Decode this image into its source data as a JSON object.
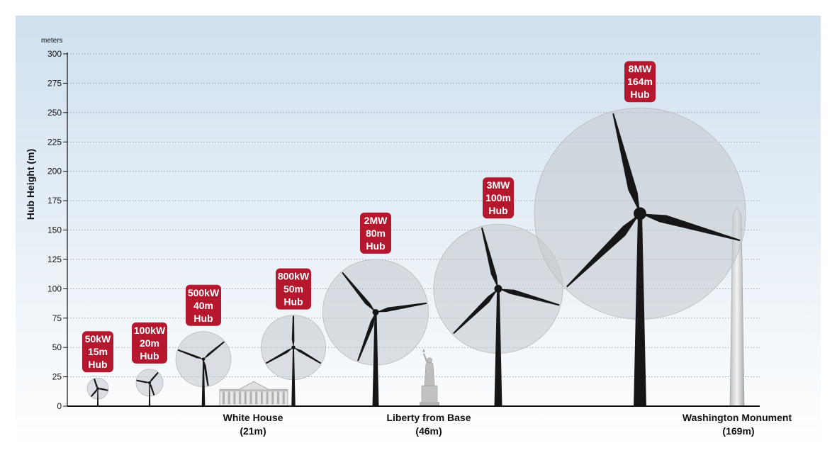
{
  "chart_data": {
    "type": "scatter",
    "unit_label": "meters",
    "ylabel": "Hub Height (m)",
    "ylim": [
      0,
      300
    ],
    "yticks": [
      0,
      25,
      50,
      75,
      100,
      125,
      150,
      175,
      200,
      225,
      250,
      275,
      300
    ],
    "grid": true,
    "accent_color": "#b5182e",
    "background_gradient": [
      "#cfe0ee",
      "#ffffff"
    ],
    "turbines": [
      {
        "power": "50kW",
        "hub_label": "15m",
        "word": "Hub",
        "hub_height": 15,
        "rotor_diameter": 18
      },
      {
        "power": "100kW",
        "hub_label": "20m",
        "word": "Hub",
        "hub_height": 20,
        "rotor_diameter": 23
      },
      {
        "power": "500kW",
        "hub_label": "40m",
        "word": "Hub",
        "hub_height": 40,
        "rotor_diameter": 47
      },
      {
        "power": "800kW",
        "hub_label": "50m",
        "word": "Hub",
        "hub_height": 50,
        "rotor_diameter": 55
      },
      {
        "power": "2MW",
        "hub_label": "80m",
        "word": "Hub",
        "hub_height": 80,
        "rotor_diameter": 90
      },
      {
        "power": "3MW",
        "hub_label": "100m",
        "word": "Hub",
        "hub_height": 100,
        "rotor_diameter": 110
      },
      {
        "power": "8MW",
        "hub_label": "164m",
        "word": "Hub",
        "hub_height": 164,
        "rotor_diameter": 180
      }
    ],
    "landmarks": [
      {
        "name": "White House",
        "height_label": "(21m)",
        "height": 21
      },
      {
        "name": "Liberty from Base",
        "height_label": "(46m)",
        "height": 46
      },
      {
        "name": "Washington Monument",
        "height_label": "(169m)",
        "height": 169
      }
    ]
  }
}
